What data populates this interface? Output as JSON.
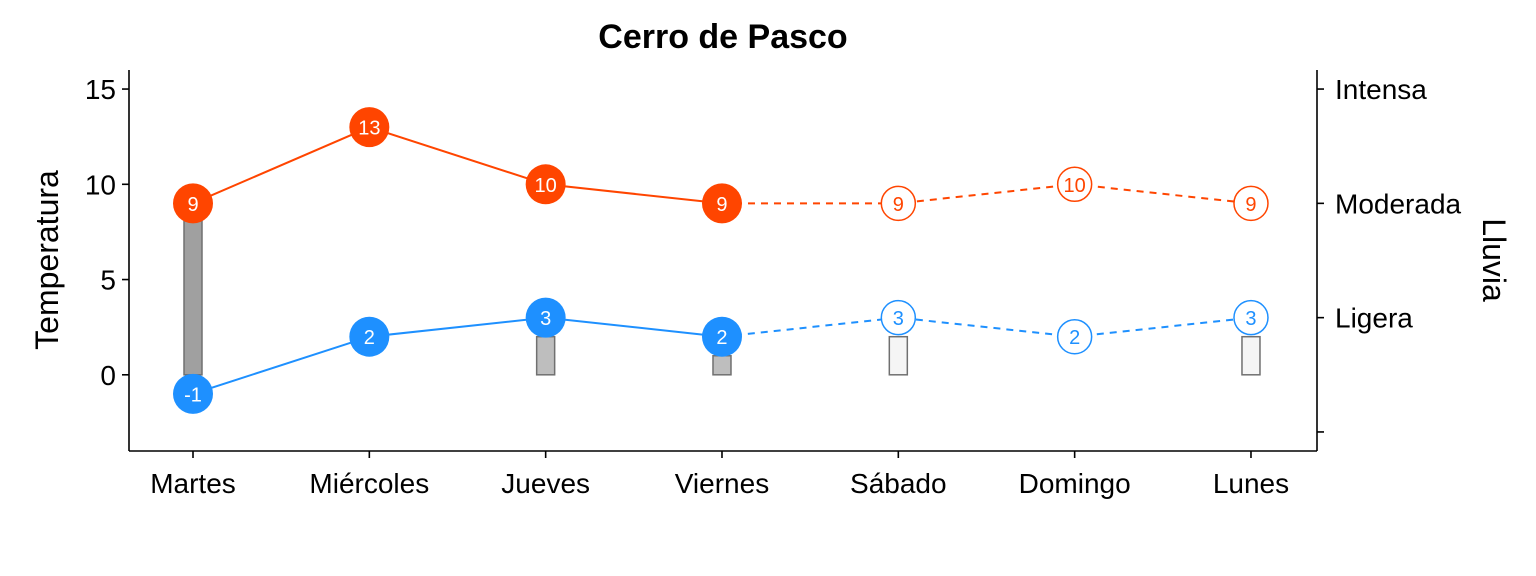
{
  "chart_data": {
    "type": "line",
    "title": "Cerro de Pasco",
    "ylabel_left": "Temperatura",
    "ylabel_right": "Lluvia",
    "categories": [
      "Martes",
      "Miércoles",
      "Jueves",
      "Viernes",
      "Sábado",
      "Domingo",
      "Lunes"
    ],
    "ylim": [
      -4,
      16
    ],
    "y_ticks": [
      0,
      5,
      10,
      15
    ],
    "y_tick_labels": [
      "0",
      "5",
      "10",
      "15"
    ],
    "right_axis_ticks": [
      -3,
      3,
      9,
      15
    ],
    "right_axis_labels": [
      "",
      "Ligera",
      "Moderada",
      "Intensa"
    ],
    "forecast_from_index": 4,
    "series": [
      {
        "values": [
          9,
          13,
          10,
          9,
          9,
          10,
          9
        ],
        "color": "#FF4500"
      },
      {
        "values": [
          -1,
          2,
          3,
          2,
          3,
          2,
          3
        ],
        "color": "#1E90FF"
      }
    ],
    "rain": {
      "values": [
        9,
        0,
        2,
        1,
        2,
        0,
        2
      ],
      "observed_color": "#A0A0A0",
      "observed_light_color": "#BEBEBE",
      "forecast_color": "#F5F5F5",
      "outline_color": "#707070"
    }
  }
}
